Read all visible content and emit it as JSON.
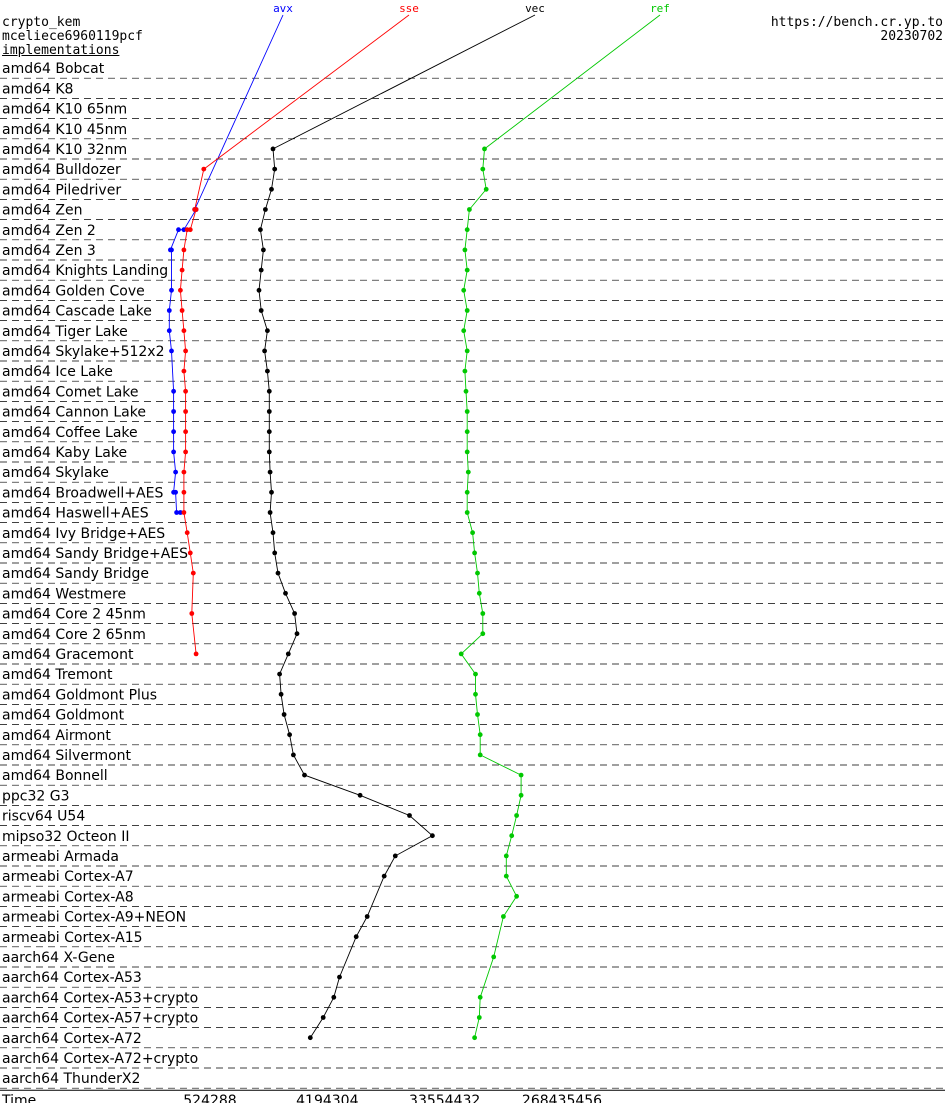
{
  "header": {
    "primitive": "crypto_kem",
    "name": "mceliece6960119pcf",
    "subtitle": "implementations",
    "site": "https://bench.cr.yp.to",
    "date": "20230702"
  },
  "colors": {
    "avx": "#0000ff",
    "sse": "#ff0000",
    "vec": "#000000",
    "ref": "#00c800"
  },
  "chart_data": {
    "type": "line",
    "xscale": "log",
    "xlabel": "Time",
    "xticks": [
      524288,
      4194304,
      33554432,
      268435456
    ],
    "implementations": [
      "avx",
      "sse",
      "vec",
      "ref"
    ],
    "machines": [
      "amd64 Bobcat",
      "amd64 K8",
      "amd64 K10 65nm",
      "amd64 K10 45nm",
      "amd64 K10 32nm",
      "amd64 Bulldozer",
      "amd64 Piledriver",
      "amd64 Zen",
      "amd64 Zen 2",
      "amd64 Zen 3",
      "amd64 Knights Landing",
      "amd64 Golden Cove",
      "amd64 Cascade Lake",
      "amd64 Tiger Lake",
      "amd64 Skylake+512x2",
      "amd64 Ice Lake",
      "amd64 Comet Lake",
      "amd64 Cannon Lake",
      "amd64 Coffee Lake",
      "amd64 Kaby Lake",
      "amd64 Skylake",
      "amd64 Broadwell+AES",
      "amd64 Haswell+AES",
      "amd64 Ivy Bridge+AES",
      "amd64 Sandy Bridge+AES",
      "amd64 Sandy Bridge",
      "amd64 Westmere",
      "amd64 Core 2 45nm",
      "amd64 Core 2 65nm",
      "amd64 Gracemont",
      "amd64 Tremont",
      "amd64 Goldmont Plus",
      "amd64 Goldmont",
      "amd64 Airmont",
      "amd64 Silvermont",
      "amd64 Bonnell",
      "ppc32 G3",
      "riscv64 U54",
      "mipso32 Octeon II",
      "armeabi Armada",
      "armeabi Cortex-A7",
      "armeabi Cortex-A8",
      "armeabi Cortex-A9+NEON",
      "armeabi Cortex-A15",
      "aarch64 X-Gene",
      "aarch64 Cortex-A53",
      "aarch64 Cortex-A53+crypto",
      "aarch64 Cortex-A57+crypto",
      "aarch64 Cortex-A72",
      "aarch64 Cortex-A72+crypto",
      "aarch64 ThunderX2"
    ],
    "series": [
      {
        "name": "avx",
        "points": [
          [
            7,
            400000
          ],
          [
            7,
            410000
          ],
          [
            8,
            330000
          ],
          [
            8,
            300000
          ],
          [
            9,
            260000
          ],
          [
            9,
            265000
          ],
          [
            11,
            265000
          ],
          [
            12,
            255000
          ],
          [
            13,
            255000
          ],
          [
            14,
            265000
          ],
          [
            16,
            275000
          ],
          [
            17,
            275000
          ],
          [
            18,
            275000
          ],
          [
            19,
            275000
          ],
          [
            20,
            285000
          ],
          [
            21,
            275000
          ],
          [
            21,
            285000
          ],
          [
            22,
            290000
          ],
          [
            22,
            310000
          ]
        ]
      },
      {
        "name": "sse",
        "points": [
          [
            5,
            470000
          ],
          [
            7,
            400000
          ],
          [
            7,
            410000
          ],
          [
            8,
            370000
          ],
          [
            8,
            350000
          ],
          [
            9,
            330000
          ],
          [
            10,
            320000
          ],
          [
            11,
            310000
          ],
          [
            12,
            320000
          ],
          [
            13,
            330000
          ],
          [
            14,
            340000
          ],
          [
            15,
            330000
          ],
          [
            16,
            340000
          ],
          [
            17,
            340000
          ],
          [
            18,
            340000
          ],
          [
            19,
            340000
          ],
          [
            20,
            330000
          ],
          [
            21,
            330000
          ],
          [
            22,
            330000
          ],
          [
            23,
            350000
          ],
          [
            24,
            370000
          ],
          [
            25,
            390000
          ],
          [
            27,
            380000
          ],
          [
            29,
            410000
          ]
        ]
      },
      {
        "name": "vec",
        "points": [
          [
            4,
            1600000
          ],
          [
            5,
            1650000
          ],
          [
            6,
            1560000
          ],
          [
            7,
            1400000
          ],
          [
            8,
            1280000
          ],
          [
            9,
            1350000
          ],
          [
            10,
            1300000
          ],
          [
            11,
            1250000
          ],
          [
            12,
            1300000
          ],
          [
            13,
            1450000
          ],
          [
            14,
            1380000
          ],
          [
            15,
            1450000
          ],
          [
            16,
            1500000
          ],
          [
            17,
            1500000
          ],
          [
            18,
            1500000
          ],
          [
            19,
            1500000
          ],
          [
            20,
            1520000
          ],
          [
            21,
            1560000
          ],
          [
            22,
            1520000
          ],
          [
            23,
            1600000
          ],
          [
            24,
            1650000
          ],
          [
            25,
            1750000
          ],
          [
            26,
            2000000
          ],
          [
            27,
            2350000
          ],
          [
            28,
            2450000
          ],
          [
            29,
            2100000
          ],
          [
            30,
            1800000
          ],
          [
            31,
            1850000
          ],
          [
            32,
            1950000
          ],
          [
            33,
            2150000
          ],
          [
            34,
            2300000
          ],
          [
            35,
            2800000
          ],
          [
            36,
            7500000
          ],
          [
            37,
            18000000
          ],
          [
            38,
            27000000
          ],
          [
            39,
            14000000
          ],
          [
            40,
            11500000
          ],
          [
            42,
            8500000
          ],
          [
            43,
            7000000
          ],
          [
            45,
            5200000
          ],
          [
            46,
            4700000
          ],
          [
            47,
            3900000
          ],
          [
            48,
            3100000
          ]
        ]
      },
      {
        "name": "ref",
        "points": [
          [
            4,
            68000000
          ],
          [
            5,
            66000000
          ],
          [
            6,
            70000000
          ],
          [
            7,
            52000000
          ],
          [
            8,
            50000000
          ],
          [
            9,
            48000000
          ],
          [
            10,
            50000000
          ],
          [
            11,
            47000000
          ],
          [
            12,
            50000000
          ],
          [
            13,
            47000000
          ],
          [
            14,
            50000000
          ],
          [
            15,
            48000000
          ],
          [
            16,
            49000000
          ],
          [
            17,
            50000000
          ],
          [
            18,
            50000000
          ],
          [
            19,
            50000000
          ],
          [
            20,
            51000000
          ],
          [
            21,
            50000000
          ],
          [
            22,
            50000000
          ],
          [
            23,
            55000000
          ],
          [
            24,
            57000000
          ],
          [
            25,
            60000000
          ],
          [
            26,
            62000000
          ],
          [
            27,
            66000000
          ],
          [
            28,
            66000000
          ],
          [
            29,
            45000000
          ],
          [
            30,
            58000000
          ],
          [
            31,
            58000000
          ],
          [
            32,
            60000000
          ],
          [
            33,
            63000000
          ],
          [
            34,
            63000000
          ],
          [
            35,
            130000000
          ],
          [
            36,
            130000000
          ],
          [
            37,
            120000000
          ],
          [
            38,
            110000000
          ],
          [
            39,
            100000000
          ],
          [
            40,
            100000000
          ],
          [
            41,
            120000000
          ],
          [
            42,
            95000000
          ],
          [
            44,
            80000000
          ],
          [
            46,
            63000000
          ],
          [
            47,
            62000000
          ],
          [
            48,
            57000000
          ]
        ]
      }
    ]
  }
}
